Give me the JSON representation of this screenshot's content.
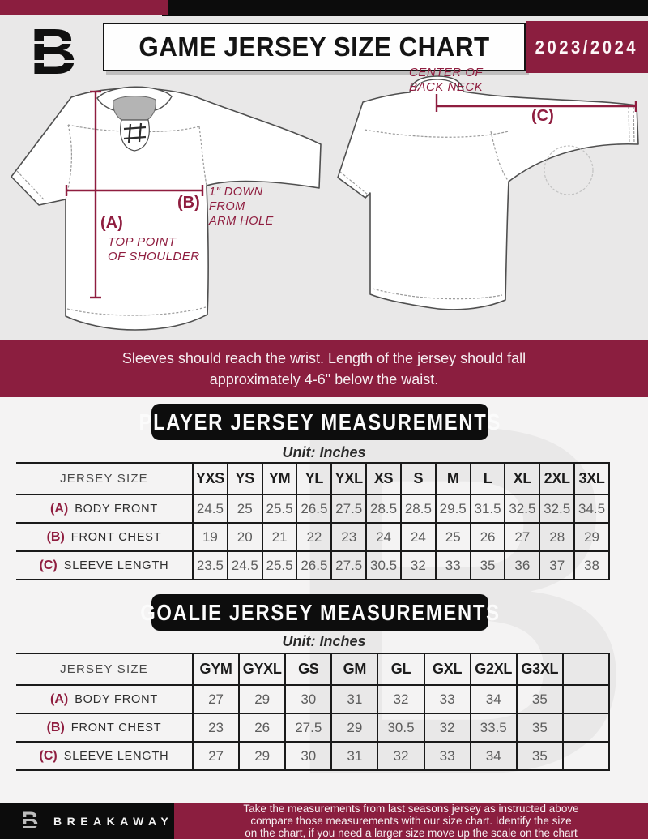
{
  "header": {
    "logo_glyph": "B",
    "title": "GAME JERSEY SIZE CHART",
    "season": "2023/2024"
  },
  "diagram": {
    "front": {
      "label_a": "(A)",
      "label_a_note_line1": "TOP POINT",
      "label_a_note_line2": "OF SHOULDER",
      "label_b": "(B)",
      "label_b_note_line1": "1\" DOWN",
      "label_b_note_line2": "FROM",
      "label_b_note_line3": "ARM HOLE"
    },
    "back": {
      "label_c": "(C)",
      "note_line1": "CENTER OF",
      "note_line2": "BACK NECK"
    }
  },
  "banner": {
    "line1": "Sleeves should reach the wrist. Length of the jersey should fall",
    "line2": "approximately 4-6\" below the waist."
  },
  "player_section": {
    "title": "PLAYER JERSEY MEASUREMENTS",
    "unit": "Unit: Inches",
    "table": {
      "header": [
        "JERSEY SIZE",
        "YXS",
        "YS",
        "YM",
        "YL",
        "YXL",
        "XS",
        "S",
        "M",
        "L",
        "XL",
        "2XL",
        "3XL"
      ],
      "rows": [
        {
          "key": "(A)",
          "label": "BODY FRONT",
          "values": [
            "24.5",
            "25",
            "25.5",
            "26.5",
            "27.5",
            "28.5",
            "28.5",
            "29.5",
            "31.5",
            "32.5",
            "32.5",
            "34.5"
          ]
        },
        {
          "key": "(B)",
          "label": "FRONT CHEST",
          "values": [
            "19",
            "20",
            "21",
            "22",
            "23",
            "24",
            "24",
            "25",
            "26",
            "27",
            "28",
            "29"
          ]
        },
        {
          "key": "(C)",
          "label": "SLEEVE LENGTH",
          "values": [
            "23.5",
            "24.5",
            "25.5",
            "26.5",
            "27.5",
            "30.5",
            "32",
            "33",
            "35",
            "36",
            "37",
            "38"
          ]
        }
      ]
    }
  },
  "goalie_section": {
    "title": "GOALIE JERSEY MEASUREMENTS",
    "unit": "Unit: Inches",
    "table": {
      "header": [
        "JERSEY SIZE",
        "GYM",
        "GYXL",
        "GS",
        "GM",
        "GL",
        "GXL",
        "G2XL",
        "G3XL",
        ""
      ],
      "rows": [
        {
          "key": "(A)",
          "label": "BODY FRONT",
          "values": [
            "27",
            "29",
            "30",
            "31",
            "32",
            "33",
            "34",
            "35",
            ""
          ]
        },
        {
          "key": "(B)",
          "label": "FRONT CHEST",
          "values": [
            "23",
            "26",
            "27.5",
            "29",
            "30.5",
            "32",
            "33.5",
            "35",
            ""
          ]
        },
        {
          "key": "(C)",
          "label": "SLEEVE LENGTH",
          "values": [
            "27",
            "29",
            "30",
            "31",
            "32",
            "33",
            "34",
            "35",
            ""
          ]
        }
      ]
    }
  },
  "footer": {
    "logo_glyph": "B",
    "brand": "BREAKAWAY",
    "note_line1": "Take the measurements from last seasons jersey as instructed above",
    "note_line2": "compare those measurements  with our size chart. Identify the size",
    "note_line3": "on the chart, if you need a larger size move up the scale on the chart"
  },
  "watermark_glyph": "B",
  "colors": {
    "maroon": "#8b1e3f",
    "black": "#0c0c0c",
    "hero_background": "#e9e8e8",
    "page_background": "#f4f3f3",
    "table_line": "#1a1a1a",
    "value_text": "#5d5d5d",
    "measurement_accent": "#8f1d3f"
  }
}
